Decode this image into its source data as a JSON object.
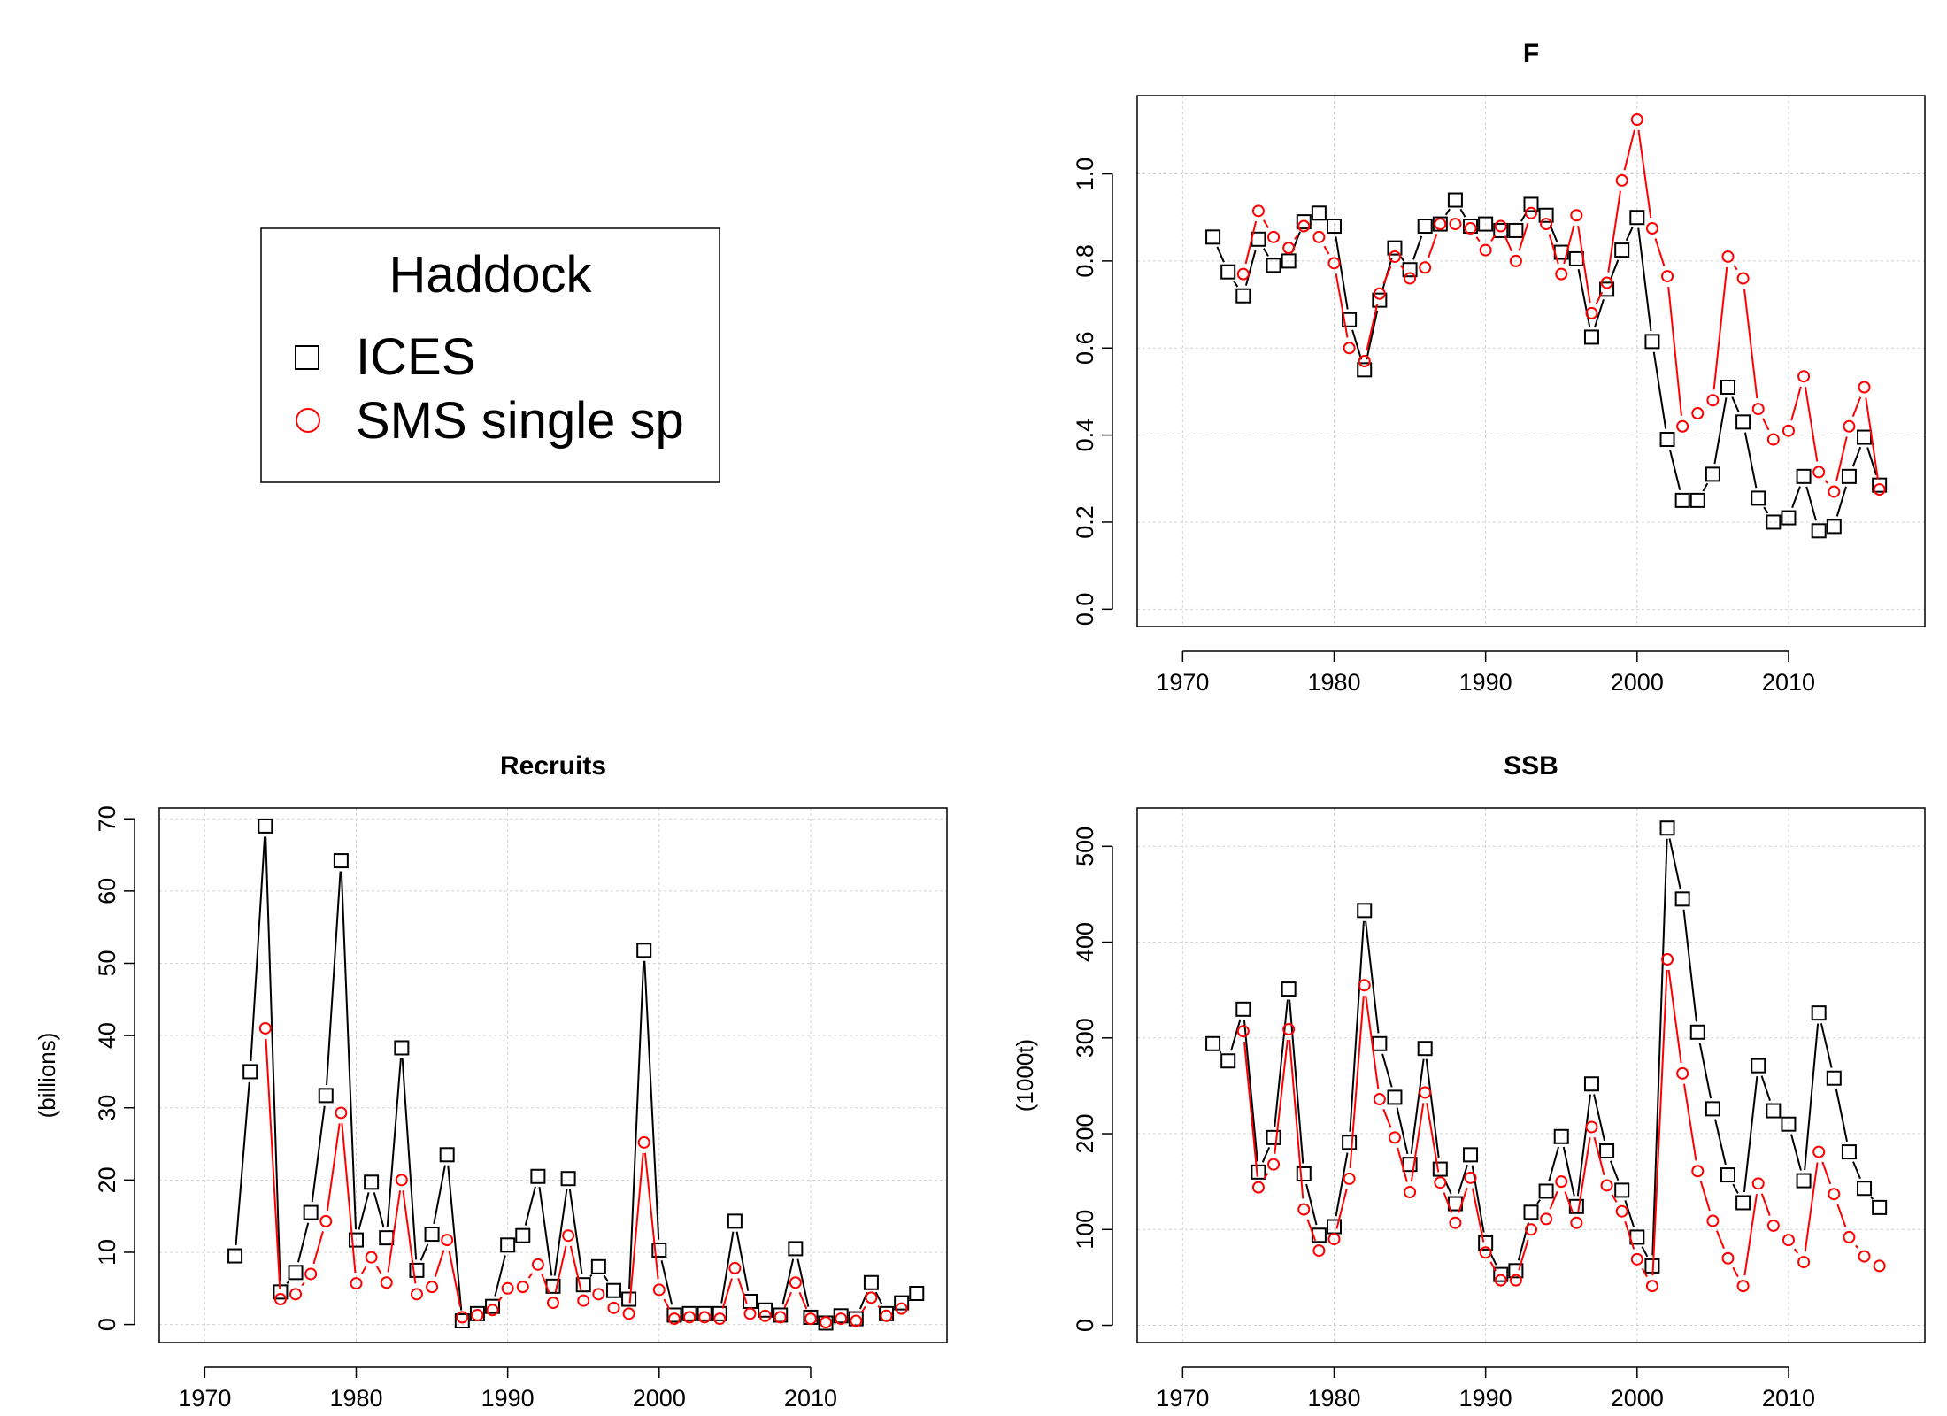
{
  "legend": {
    "title": "Haddock",
    "entries": [
      {
        "label": "ICES",
        "color": "#000000",
        "marker": "square"
      },
      {
        "label": "SMS single sp",
        "color": "#ff0000",
        "marker": "circle"
      }
    ]
  },
  "chart_data": [
    {
      "type": "line",
      "title": "F",
      "ylabel": "",
      "xlim": [
        1967,
        2019
      ],
      "ylim": [
        -0.04,
        1.18
      ],
      "xticks": [
        1970,
        1980,
        1990,
        2000,
        2010
      ],
      "yticks": [
        0.0,
        0.2,
        0.4,
        0.6,
        0.8,
        1.0
      ],
      "ytick_labels": [
        "0.0",
        "0.2",
        "0.4",
        "0.6",
        "0.8",
        "1.0"
      ],
      "grid": true,
      "series": [
        {
          "name": "ICES",
          "color": "#000000",
          "marker": "square",
          "x": [
            1972,
            1973,
            1974,
            1975,
            1976,
            1977,
            1978,
            1979,
            1980,
            1981,
            1982,
            1983,
            1984,
            1985,
            1986,
            1987,
            1988,
            1989,
            1990,
            1991,
            1992,
            1993,
            1994,
            1995,
            1996,
            1997,
            1998,
            1999,
            2000,
            2001,
            2002,
            2003,
            2004,
            2005,
            2006,
            2007,
            2008,
            2009,
            2010,
            2011,
            2012,
            2013,
            2014,
            2015,
            2016
          ],
          "y": [
            0.855,
            0.775,
            0.72,
            0.85,
            0.79,
            0.8,
            0.89,
            0.91,
            0.88,
            0.665,
            0.55,
            0.71,
            0.83,
            0.78,
            0.88,
            0.885,
            0.94,
            0.88,
            0.885,
            0.87,
            0.87,
            0.93,
            0.905,
            0.82,
            0.805,
            0.625,
            0.735,
            0.825,
            0.9,
            0.615,
            0.39,
            0.25,
            0.25,
            0.31,
            0.51,
            0.43,
            0.255,
            0.2,
            0.21,
            0.305,
            0.18,
            0.19,
            0.305,
            0.395,
            0.285
          ]
        },
        {
          "name": "SMS single sp",
          "color": "#ff0000",
          "marker": "circle",
          "x": [
            1974,
            1975,
            1976,
            1977,
            1978,
            1979,
            1980,
            1981,
            1982,
            1983,
            1984,
            1985,
            1986,
            1987,
            1988,
            1989,
            1990,
            1991,
            1992,
            1993,
            1994,
            1995,
            1996,
            1997,
            1998,
            1999,
            2000,
            2001,
            2002,
            2003,
            2004,
            2005,
            2006,
            2007,
            2008,
            2009,
            2010,
            2011,
            2012,
            2013,
            2014,
            2015,
            2016
          ],
          "y": [
            0.77,
            0.915,
            0.855,
            0.83,
            0.88,
            0.855,
            0.795,
            0.6,
            0.57,
            0.725,
            0.81,
            0.76,
            0.785,
            0.885,
            0.885,
            0.875,
            0.825,
            0.88,
            0.8,
            0.91,
            0.885,
            0.77,
            0.905,
            0.68,
            0.75,
            0.985,
            1.125,
            0.875,
            0.765,
            0.42,
            0.45,
            0.48,
            0.81,
            0.76,
            0.46,
            0.39,
            0.41,
            0.535,
            0.315,
            0.27,
            0.42,
            0.51,
            0.275
          ]
        }
      ]
    },
    {
      "type": "line",
      "title": "Recruits",
      "ylabel": "(billions)",
      "xlim": [
        1967,
        2019
      ],
      "ylim": [
        -2.5,
        71.5
      ],
      "xticks": [
        1970,
        1980,
        1990,
        2000,
        2010
      ],
      "yticks": [
        0,
        10,
        20,
        30,
        40,
        50,
        60,
        70
      ],
      "ytick_labels": [
        "0",
        "10",
        "20",
        "30",
        "40",
        "50",
        "60",
        "70"
      ],
      "grid": true,
      "series": [
        {
          "name": "ICES",
          "color": "#000000",
          "marker": "square",
          "x": [
            1972,
            1973,
            1974,
            1975,
            1976,
            1977,
            1978,
            1979,
            1980,
            1981,
            1982,
            1983,
            1984,
            1985,
            1986,
            1987,
            1988,
            1989,
            1990,
            1991,
            1992,
            1993,
            1994,
            1995,
            1996,
            1997,
            1998,
            1999,
            2000,
            2001,
            2002,
            2003,
            2004,
            2005,
            2006,
            2007,
            2008,
            2009,
            2010,
            2011,
            2012,
            2013,
            2014,
            2015,
            2016,
            2017
          ],
          "y": [
            9.5,
            35,
            69,
            4.5,
            7.2,
            15.5,
            31.7,
            64.2,
            11.7,
            19.7,
            12,
            38.3,
            7.5,
            12.5,
            23.5,
            0.5,
            1.5,
            2.5,
            11,
            12.3,
            20.5,
            5.3,
            20.2,
            5.5,
            8,
            4.7,
            3.5,
            51.8,
            10.3,
            1.3,
            1.5,
            1.5,
            1.5,
            14.3,
            3.2,
            2,
            1.3,
            10.5,
            1,
            0.2,
            1.2,
            0.8,
            5.8,
            1.5,
            3,
            4.3
          ]
        },
        {
          "name": "SMS single sp",
          "color": "#ff0000",
          "marker": "circle",
          "x": [
            1974,
            1975,
            1976,
            1977,
            1978,
            1979,
            1980,
            1981,
            1982,
            1983,
            1984,
            1985,
            1986,
            1987,
            1988,
            1989,
            1990,
            1991,
            1992,
            1993,
            1994,
            1995,
            1996,
            1997,
            1998,
            1999,
            2000,
            2001,
            2002,
            2003,
            2004,
            2005,
            2006,
            2007,
            2008,
            2009,
            2010,
            2011,
            2012,
            2013,
            2014,
            2015,
            2016
          ],
          "y": [
            41,
            3.5,
            4.2,
            7,
            14.3,
            29.3,
            5.7,
            9.3,
            5.8,
            20,
            4.2,
            5.2,
            11.7,
            1,
            1.3,
            2,
            5,
            5.2,
            8.3,
            3,
            12.3,
            3.3,
            4.2,
            2.3,
            1.5,
            25.2,
            4.8,
            0.8,
            1,
            1,
            0.8,
            7.8,
            1.5,
            1.2,
            1,
            5.8,
            0.8,
            0.3,
            0.8,
            0.5,
            3.7,
            1.2,
            2.2
          ]
        }
      ]
    },
    {
      "type": "line",
      "title": "SSB",
      "ylabel": "(1000t)",
      "xlim": [
        1967,
        2019
      ],
      "ylim": [
        -18,
        540
      ],
      "xticks": [
        1970,
        1980,
        1990,
        2000,
        2010
      ],
      "yticks": [
        0,
        100,
        200,
        300,
        400,
        500
      ],
      "ytick_labels": [
        "0",
        "100",
        "200",
        "300",
        "400",
        "500"
      ],
      "grid": true,
      "series": [
        {
          "name": "ICES",
          "color": "#000000",
          "marker": "square",
          "x": [
            1972,
            1973,
            1974,
            1975,
            1976,
            1977,
            1978,
            1979,
            1980,
            1981,
            1982,
            1983,
            1984,
            1985,
            1986,
            1987,
            1988,
            1989,
            1990,
            1991,
            1992,
            1993,
            1994,
            1995,
            1996,
            1997,
            1998,
            1999,
            2000,
            2001,
            2002,
            2003,
            2004,
            2005,
            2006,
            2007,
            2008,
            2009,
            2010,
            2011,
            2012,
            2013,
            2014,
            2015,
            2016
          ],
          "y": [
            294,
            276,
            330,
            160,
            196,
            351,
            158,
            94,
            103,
            191,
            433,
            294,
            238,
            168,
            289,
            163,
            127,
            178,
            86,
            53,
            57,
            118,
            140,
            197,
            124,
            252,
            182,
            141,
            92,
            62,
            519,
            445,
            306,
            226,
            157,
            128,
            271,
            224,
            210,
            151,
            326,
            258,
            181,
            143,
            123
          ]
        },
        {
          "name": "SMS single sp",
          "color": "#ff0000",
          "marker": "circle",
          "x": [
            1974,
            1975,
            1976,
            1977,
            1978,
            1979,
            1980,
            1981,
            1982,
            1983,
            1984,
            1985,
            1986,
            1987,
            1988,
            1989,
            1990,
            1991,
            1992,
            1993,
            1994,
            1995,
            1996,
            1997,
            1998,
            1999,
            2000,
            2001,
            2002,
            2003,
            2004,
            2005,
            2006,
            2007,
            2008,
            2009,
            2010,
            2011,
            2012,
            2013,
            2014,
            2015,
            2016
          ],
          "y": [
            307,
            144,
            168,
            309,
            121,
            78,
            90,
            153,
            355,
            236,
            196,
            139,
            243,
            149,
            107,
            154,
            76,
            47,
            47,
            100,
            111,
            150,
            107,
            207,
            146,
            119,
            69,
            41,
            382,
            263,
            161,
            109,
            70,
            41,
            148,
            104,
            89,
            66,
            181,
            137,
            92,
            72,
            62
          ]
        }
      ]
    }
  ]
}
